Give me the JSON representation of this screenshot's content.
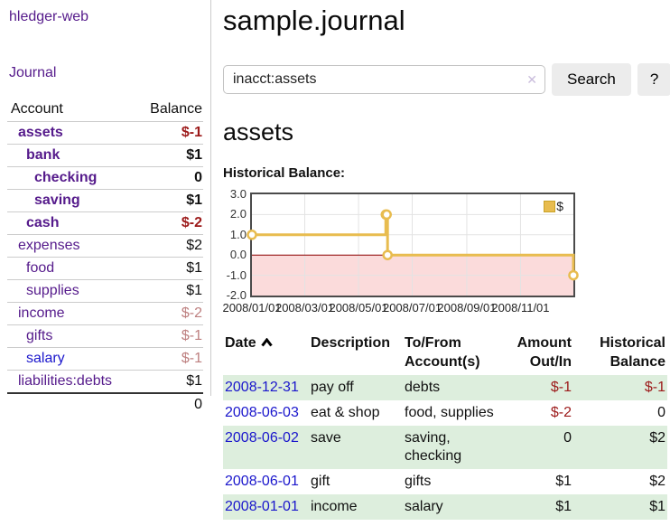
{
  "sidebar": {
    "app_title": "hledger-web",
    "journal_link": "Journal",
    "accounts_header": {
      "account": "Account",
      "balance": "Balance"
    },
    "accounts": [
      {
        "name": "assets",
        "level": 1,
        "bold": true,
        "balance": "$-1",
        "balance_cls": "neg-strong",
        "link_cls": ""
      },
      {
        "name": "bank",
        "level": 2,
        "bold": true,
        "balance": "$1",
        "balance_cls": "",
        "link_cls": ""
      },
      {
        "name": "checking",
        "level": 3,
        "bold": true,
        "balance": "0",
        "balance_cls": "",
        "link_cls": ""
      },
      {
        "name": "saving",
        "level": 3,
        "bold": true,
        "balance": "$1",
        "balance_cls": "",
        "link_cls": ""
      },
      {
        "name": "cash",
        "level": 2,
        "bold": true,
        "balance": "$-2",
        "balance_cls": "neg-strong",
        "link_cls": ""
      },
      {
        "name": "expenses",
        "level": 1,
        "bold": false,
        "balance": "$2",
        "balance_cls": "",
        "link_cls": ""
      },
      {
        "name": "food",
        "level": 2,
        "bold": false,
        "balance": "$1",
        "balance_cls": "",
        "link_cls": ""
      },
      {
        "name": "supplies",
        "level": 2,
        "bold": false,
        "balance": "$1",
        "balance_cls": "",
        "link_cls": ""
      },
      {
        "name": "income",
        "level": 1,
        "bold": false,
        "balance": "$-2",
        "balance_cls": "neg-muted",
        "link_cls": ""
      },
      {
        "name": "gifts",
        "level": 2,
        "bold": false,
        "balance": "$-1",
        "balance_cls": "neg-muted",
        "link_cls": ""
      },
      {
        "name": "salary",
        "level": 2,
        "bold": false,
        "balance": "$-1",
        "balance_cls": "neg-muted",
        "link_cls": "blue"
      },
      {
        "name": "liabilities:debts",
        "level": 1,
        "bold": false,
        "balance": "$1",
        "balance_cls": "",
        "link_cls": ""
      }
    ],
    "total": "0"
  },
  "main": {
    "title": "sample.journal",
    "search": {
      "value": "inacct:assets",
      "clear_icon": "✕",
      "button_label": "Search",
      "help_label": "?"
    },
    "account_heading": "assets"
  },
  "chart_data": {
    "type": "line",
    "subtype": "step-after",
    "title": "Historical Balance:",
    "series": [
      {
        "name": "$",
        "color": "#e8bc4f",
        "points": [
          [
            "2008-01-01",
            1
          ],
          [
            "2008-06-01",
            2
          ],
          [
            "2008-06-02",
            2
          ],
          [
            "2008-06-03",
            0
          ],
          [
            "2008-12-31",
            -1
          ]
        ]
      }
    ],
    "x_range": [
      "2008-01-01",
      "2008-12-31"
    ],
    "ylim": [
      -2,
      3
    ],
    "yticks": [
      3,
      2,
      1,
      0,
      -1,
      -2
    ],
    "ytick_labels": [
      "3.0",
      "2.0",
      "1.0",
      "0.0",
      "-1.0",
      "-2.0"
    ],
    "xticks": [
      "2008-01-01",
      "2008-03-01",
      "2008-05-01",
      "2008-07-01",
      "2008-09-01",
      "2008-11-01"
    ],
    "xtick_labels": [
      "2008/01/01",
      "2008/03/01",
      "2008/05/01",
      "2008/07/01",
      "2008/09/01",
      "2008/11/01"
    ],
    "grid": true,
    "legend": "$",
    "legend_position": "top-right",
    "negative_region_color": "#fbdbdb",
    "zero_line_color": "#8b0000",
    "grid_color": "#e3e3e3"
  },
  "table": {
    "headers": [
      "Date",
      "Description",
      "To/From Account(s)",
      "Amount Out/In",
      "Historical Balance"
    ],
    "rows": [
      {
        "date": "2008-12-31",
        "description": "pay off",
        "accounts": "debts",
        "amount": "$-1",
        "amount_cls": "neg",
        "balance": "$-1",
        "balance_cls": "neg"
      },
      {
        "date": "2008-06-03",
        "description": "eat & shop",
        "accounts": "food, supplies",
        "amount": "$-2",
        "amount_cls": "neg",
        "balance": "0",
        "balance_cls": ""
      },
      {
        "date": "2008-06-02",
        "description": "save",
        "accounts": "saving, checking",
        "amount": "0",
        "amount_cls": "",
        "balance": "$2",
        "balance_cls": ""
      },
      {
        "date": "2008-06-01",
        "description": "gift",
        "accounts": "gifts",
        "amount": "$1",
        "amount_cls": "",
        "balance": "$2",
        "balance_cls": ""
      },
      {
        "date": "2008-01-01",
        "description": "income",
        "accounts": "salary",
        "amount": "$1",
        "amount_cls": "",
        "balance": "$1",
        "balance_cls": ""
      }
    ]
  },
  "colors": {
    "purple_link": "#551a8b",
    "blue_link": "#1a16cc",
    "negative_strong": "#9c1a1a",
    "negative_muted": "#bd7f7f",
    "stripe_green": "#ddeedd",
    "gold": "#e8bc4f"
  }
}
